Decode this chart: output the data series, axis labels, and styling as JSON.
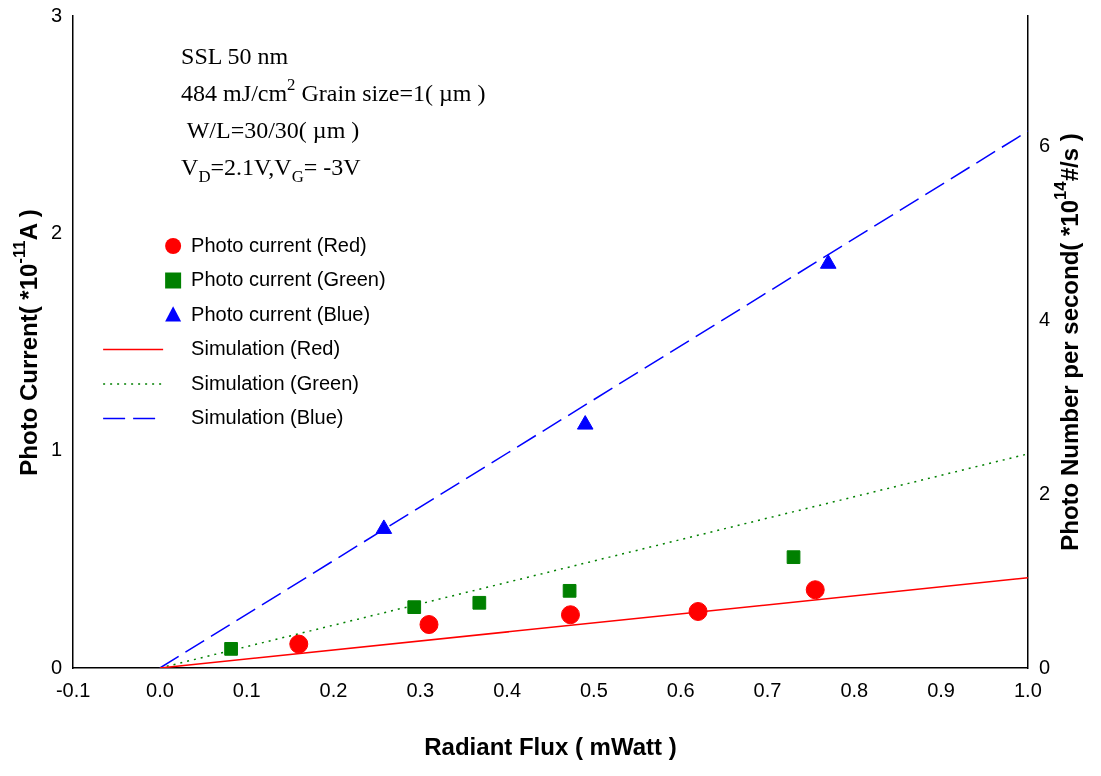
{
  "chart_data": {
    "type": "scatter",
    "xlabel": "Radiant Flux ( mWatt )",
    "ylabel": "Photo Current( *10$^{-11}$A )",
    "y2label": "Photo Number per second( *10$^{14}$#/s )",
    "annotations": [
      "SSL 50 nm",
      "484 mJ/cm$^{2}$ Grain size=1( µm )",
      " W/L=30/30( µm )",
      "V$_{D}$=2.1V,V$_{G}$= -3V"
    ],
    "series": [
      {
        "name": "Photo current (Red)",
        "marker": "circle",
        "color": "#ff0000",
        "x": [
          0.16,
          0.31,
          0.473,
          0.62,
          0.755
        ],
        "values": [
          0.11,
          0.2,
          0.245,
          0.26,
          0.36
        ]
      },
      {
        "name": "Photo current (Green)",
        "marker": "square",
        "color": "#008000",
        "x": [
          0.082,
          0.293,
          0.368,
          0.472,
          0.73
        ],
        "values": [
          0.088,
          0.28,
          0.3,
          0.355,
          0.51
        ]
      },
      {
        "name": "Photo current (Blue)",
        "marker": "triangle",
        "color": "#0000ff",
        "x": [
          0.258,
          0.49,
          0.77
        ],
        "values": [
          0.64,
          1.12,
          1.86
        ]
      },
      {
        "name": "Simulation (Red)",
        "type": "line",
        "line_style": "solid",
        "color": "#ff0000",
        "x": [
          0,
          1.0
        ],
        "values": [
          0,
          0.415
        ]
      },
      {
        "name": "Simulation (Green)",
        "type": "line",
        "line_style": "dotted",
        "color": "#008000",
        "x": [
          0,
          1.0
        ],
        "values": [
          0,
          0.985
        ]
      },
      {
        "name": "Simulation (Blue)",
        "type": "line",
        "line_style": "dashed",
        "color": "#0000ff",
        "x": [
          0,
          1.0
        ],
        "values": [
          0,
          2.47
        ]
      }
    ],
    "xlim": [
      -0.1,
      1.0
    ],
    "xticks": [
      -0.1,
      {
        "value": 0,
        "label": "0.0"
      },
      0.1,
      0.2,
      0.3,
      0.4,
      0.5,
      0.6,
      0.7,
      0.8,
      0.9,
      {
        "value": 1,
        "label": "1.0"
      }
    ],
    "ylim": [
      0,
      3
    ],
    "yticks": [
      0,
      1,
      2,
      3
    ],
    "y2lim": [
      0,
      7.5
    ],
    "y2ticks": [
      0,
      2,
      4,
      6
    ],
    "grid": false,
    "legend": "left"
  }
}
